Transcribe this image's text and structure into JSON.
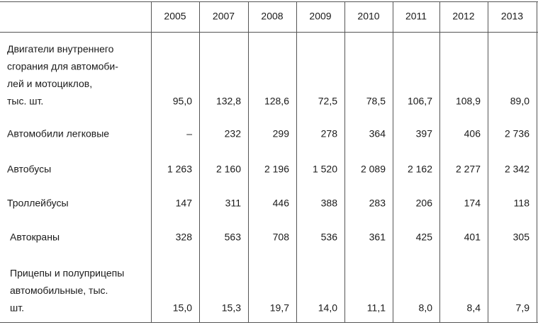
{
  "table": {
    "years": [
      "2005",
      "2007",
      "2008",
      "2009",
      "2010",
      "2011",
      "2012",
      "2013"
    ],
    "rows": [
      {
        "label": [
          "Двигатели внутреннего",
          "сгорания для автомоби-",
          "лей и мотоциклов,",
          "тыс. шт."
        ],
        "values": [
          "95,0",
          "132,8",
          "128,6",
          "72,5",
          "78,5",
          "106,7",
          "108,9",
          "89,0"
        ]
      },
      {
        "label": [
          "Автомобили легковые"
        ],
        "values": [
          "–",
          "232",
          "299",
          "278",
          "364",
          "397",
          "406",
          "2 736"
        ]
      },
      {
        "label": [
          "Автобусы"
        ],
        "values": [
          "1 263",
          "2 160",
          "2 196",
          "1 520",
          "2 089",
          "2 162",
          "2 277",
          "2 342"
        ]
      },
      {
        "label": [
          "Троллейбусы"
        ],
        "values": [
          "147",
          "311",
          "446",
          "388",
          "283",
          "206",
          "174",
          "118"
        ]
      },
      {
        "label": [
          "Автокраны"
        ],
        "values": [
          "328",
          "563",
          "708",
          "536",
          "361",
          "425",
          "401",
          "305"
        ]
      },
      {
        "label": [
          "Прицепы и полуприцепы",
          "автомобильные, тыс.",
          "шт."
        ],
        "values": [
          "15,0",
          "15,3",
          "19,7",
          "14,0",
          "11,1",
          "8,0",
          "8,4",
          "7,9"
        ]
      }
    ]
  }
}
